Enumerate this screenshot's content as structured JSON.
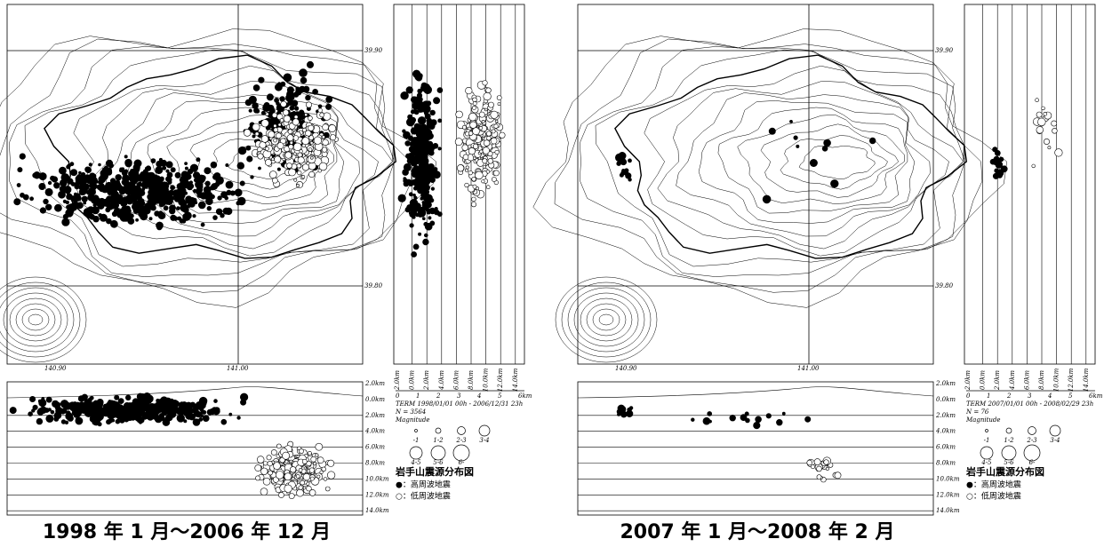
{
  "panels": [
    {
      "lat_labels": [
        "39.90",
        "39.80"
      ],
      "lon_labels": [
        "140.90",
        "141.00"
      ],
      "depth_labels": [
        "2.0km",
        "0.0km",
        "2.0km",
        "4.0km",
        "6.0km",
        "8.0km",
        "10.0km",
        "12.0km",
        "14.0km"
      ],
      "side_labels": [
        "2.0km",
        "0.0km",
        "2.0km",
        "4.0km",
        "6.0km",
        "8.0km",
        "10.0km",
        "12.0km",
        "14.0km"
      ],
      "scale_labels": [
        "0",
        "1",
        "2",
        "3",
        "4",
        "5",
        "6km"
      ],
      "term": "TERM 1998/01/01 00h - 2006/12/31 23h",
      "n": "N = 3564",
      "magnitude_title": "Magnitude",
      "magnitude_labels": [
        "-1",
        "1-2",
        "2-3",
        "3-4",
        "4-5",
        "5-6",
        "6-"
      ],
      "legend_title": "岩手山震源分布図",
      "legend_high": "●：高周波地震",
      "legend_low": "○：低周波地震",
      "caption": "1998 年 1 月～2006 年 12 月"
    },
    {
      "lat_labels": [
        "39.90",
        "39.80"
      ],
      "lon_labels": [
        "140.90",
        "141.00"
      ],
      "depth_labels": [
        "2.0km",
        "0.0km",
        "2.0km",
        "4.0km",
        "6.0km",
        "8.0km",
        "10.0km",
        "12.0km",
        "14.0km"
      ],
      "side_labels": [
        "2.0km",
        "0.0km",
        "2.0km",
        "4.0km",
        "6.0km",
        "8.0km",
        "10.0km",
        "12.0km",
        "14.0km"
      ],
      "scale_labels": [
        "0",
        "1",
        "2",
        "3",
        "4",
        "5",
        "6km"
      ],
      "term": "TERM 2007/01/01 00h - 2008/02/29 23h",
      "n": "N = 76",
      "magnitude_title": "Magnitude",
      "magnitude_labels": [
        "-1",
        "1-2",
        "2-3",
        "3-4",
        "4-5",
        "5-6",
        "6-"
      ],
      "legend_title": "岩手山震源分布図",
      "legend_high": "●：高周波地震",
      "legend_low": "○：低周波地震",
      "caption": "2007 年 1 月～2008 年 2 月"
    }
  ]
}
